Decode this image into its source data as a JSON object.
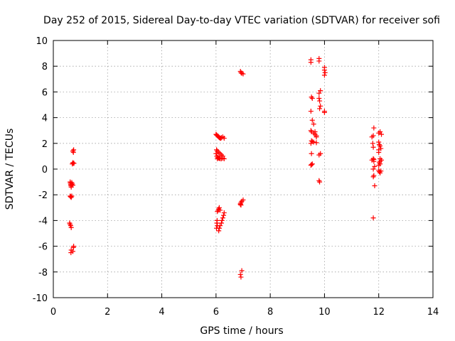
{
  "chart_data": {
    "type": "scatter",
    "title": "Day 252 of 2015, Sidereal Day-to-day VTEC variation (SDTVAR) for receiver sofi",
    "xlabel": "GPS time / hours",
    "ylabel": "SDTVAR / TECUs",
    "xlim": [
      0,
      14
    ],
    "ylim": [
      -10,
      10
    ],
    "xticks": [
      "0",
      "2",
      "4",
      "6",
      "8",
      "10",
      "12",
      "14"
    ],
    "yticks": [
      "10",
      "8",
      "6",
      "4",
      "2",
      "0",
      "-2",
      "-4",
      "-6",
      "-8",
      "-10"
    ],
    "grid": true,
    "marker": "+",
    "color": "#ff0000",
    "series": [
      {
        "name": "SDTVAR",
        "x": [
          0.62,
          0.63,
          0.64,
          0.65,
          0.66,
          0.67,
          0.68,
          0.7,
          0.72,
          0.62,
          0.64,
          0.66,
          0.68,
          0.7,
          0.72,
          0.74,
          0.76,
          0.6,
          0.62,
          0.64,
          0.66,
          0.75,
          0.72,
          0.74,
          0.65,
          0.66,
          0.74,
          0.75,
          0.72,
          6.0,
          6.02,
          6.05,
          6.08,
          6.1,
          6.12,
          6.15,
          6.18,
          6.2,
          6.25,
          6.3,
          6.02,
          6.05,
          6.1,
          6.15,
          6.2,
          6.25,
          6.0,
          6.03,
          6.06,
          6.1,
          6.05,
          6.08,
          6.12,
          6.15,
          6.2,
          6.25,
          6.3,
          6.1,
          6.12,
          6.15,
          6.2,
          6.22,
          6.25,
          6.28,
          6.3,
          6.05,
          6.08,
          6.1,
          6.12,
          6.15,
          6.02,
          6.05,
          6.03,
          6.04,
          6.9,
          6.92,
          6.95,
          7.0,
          6.9,
          6.92,
          6.95,
          7.0,
          6.9,
          6.92,
          6.95,
          6.92,
          6.9,
          9.5,
          9.5,
          9.52,
          9.55,
          9.5,
          9.55,
          9.6,
          9.65,
          9.7,
          9.52,
          9.55,
          9.6,
          9.7,
          9.5,
          9.5,
          9.52,
          9.55,
          9.52,
          9.6,
          9.65,
          9.7,
          9.5,
          9.52,
          9.8,
          9.8,
          9.85,
          9.8,
          9.85,
          9.82,
          9.8,
          9.85,
          9.8,
          9.82,
          10.0,
          10.0,
          10.02,
          10.0,
          9.8,
          9.82,
          10.0,
          10.0,
          11.75,
          11.8,
          11.82,
          11.78,
          11.8,
          11.82,
          11.75,
          11.8,
          11.82,
          11.85,
          11.8,
          11.82,
          11.8,
          11.85,
          11.8,
          12.0,
          12.05,
          12.1,
          12.0,
          12.02,
          12.05,
          12.08,
          12.0,
          12.05,
          12.1,
          12.02,
          12.05,
          12.0,
          12.05,
          12.0,
          12.02,
          12.08,
          12.05,
          12.0
        ],
        "y": [
          -1.0,
          -1.1,
          -1.2,
          -1.3,
          -1.4,
          -1.2,
          -1.05,
          -1.15,
          -1.25,
          -2.1,
          -2.15,
          -2.2,
          -2.1,
          0.4,
          0.5,
          0.45,
          0.45,
          -4.2,
          -4.3,
          -4.4,
          -4.55,
          1.5,
          1.4,
          1.3,
          -6.5,
          -6.3,
          -6.1,
          -6.0,
          -6.4,
          2.7,
          2.65,
          2.6,
          2.55,
          2.5,
          2.45,
          2.4,
          2.4,
          2.45,
          2.5,
          2.4,
          1.5,
          1.4,
          1.3,
          1.2,
          1.1,
          1.0,
          1.2,
          1.0,
          0.9,
          0.85,
          0.8,
          0.9,
          0.85,
          0.8,
          0.8,
          0.85,
          0.8,
          -4.8,
          -4.6,
          -4.4,
          -4.2,
          -4.0,
          -3.8,
          -3.6,
          -3.4,
          -3.3,
          -3.2,
          -3.1,
          -3.0,
          -3.2,
          -4.6,
          -4.4,
          -4.2,
          -4.0,
          7.6,
          7.5,
          7.45,
          7.4,
          -2.7,
          -2.6,
          -2.5,
          -2.4,
          -8.2,
          -8.4,
          -7.9,
          -2.8,
          -2.75,
          8.5,
          8.3,
          5.6,
          5.5,
          4.5,
          3.8,
          3.5,
          2.9,
          2.6,
          2.2,
          2.15,
          2.1,
          2.05,
          2.0,
          0.3,
          0.35,
          0.4,
          1.2,
          2.8,
          2.7,
          2.5,
          3.0,
          2.9,
          8.6,
          8.4,
          6.1,
          5.9,
          4.9,
          4.7,
          1.1,
          1.2,
          -0.9,
          -1.0,
          7.9,
          7.7,
          7.5,
          7.3,
          5.5,
          5.3,
          4.5,
          4.4,
          2.5,
          2.6,
          3.2,
          2.0,
          1.7,
          0.6,
          0.7,
          0.8,
          0.75,
          0.2,
          0.0,
          -0.5,
          -0.6,
          -1.3,
          -3.8,
          2.8,
          2.9,
          2.7,
          2.1,
          1.9,
          1.8,
          1.6,
          1.3,
          0.8,
          0.7,
          0.5,
          0.4,
          0.3,
          0.6,
          -0.1,
          -0.2,
          -0.15,
          -0.3,
          1.5
        ]
      }
    ]
  }
}
